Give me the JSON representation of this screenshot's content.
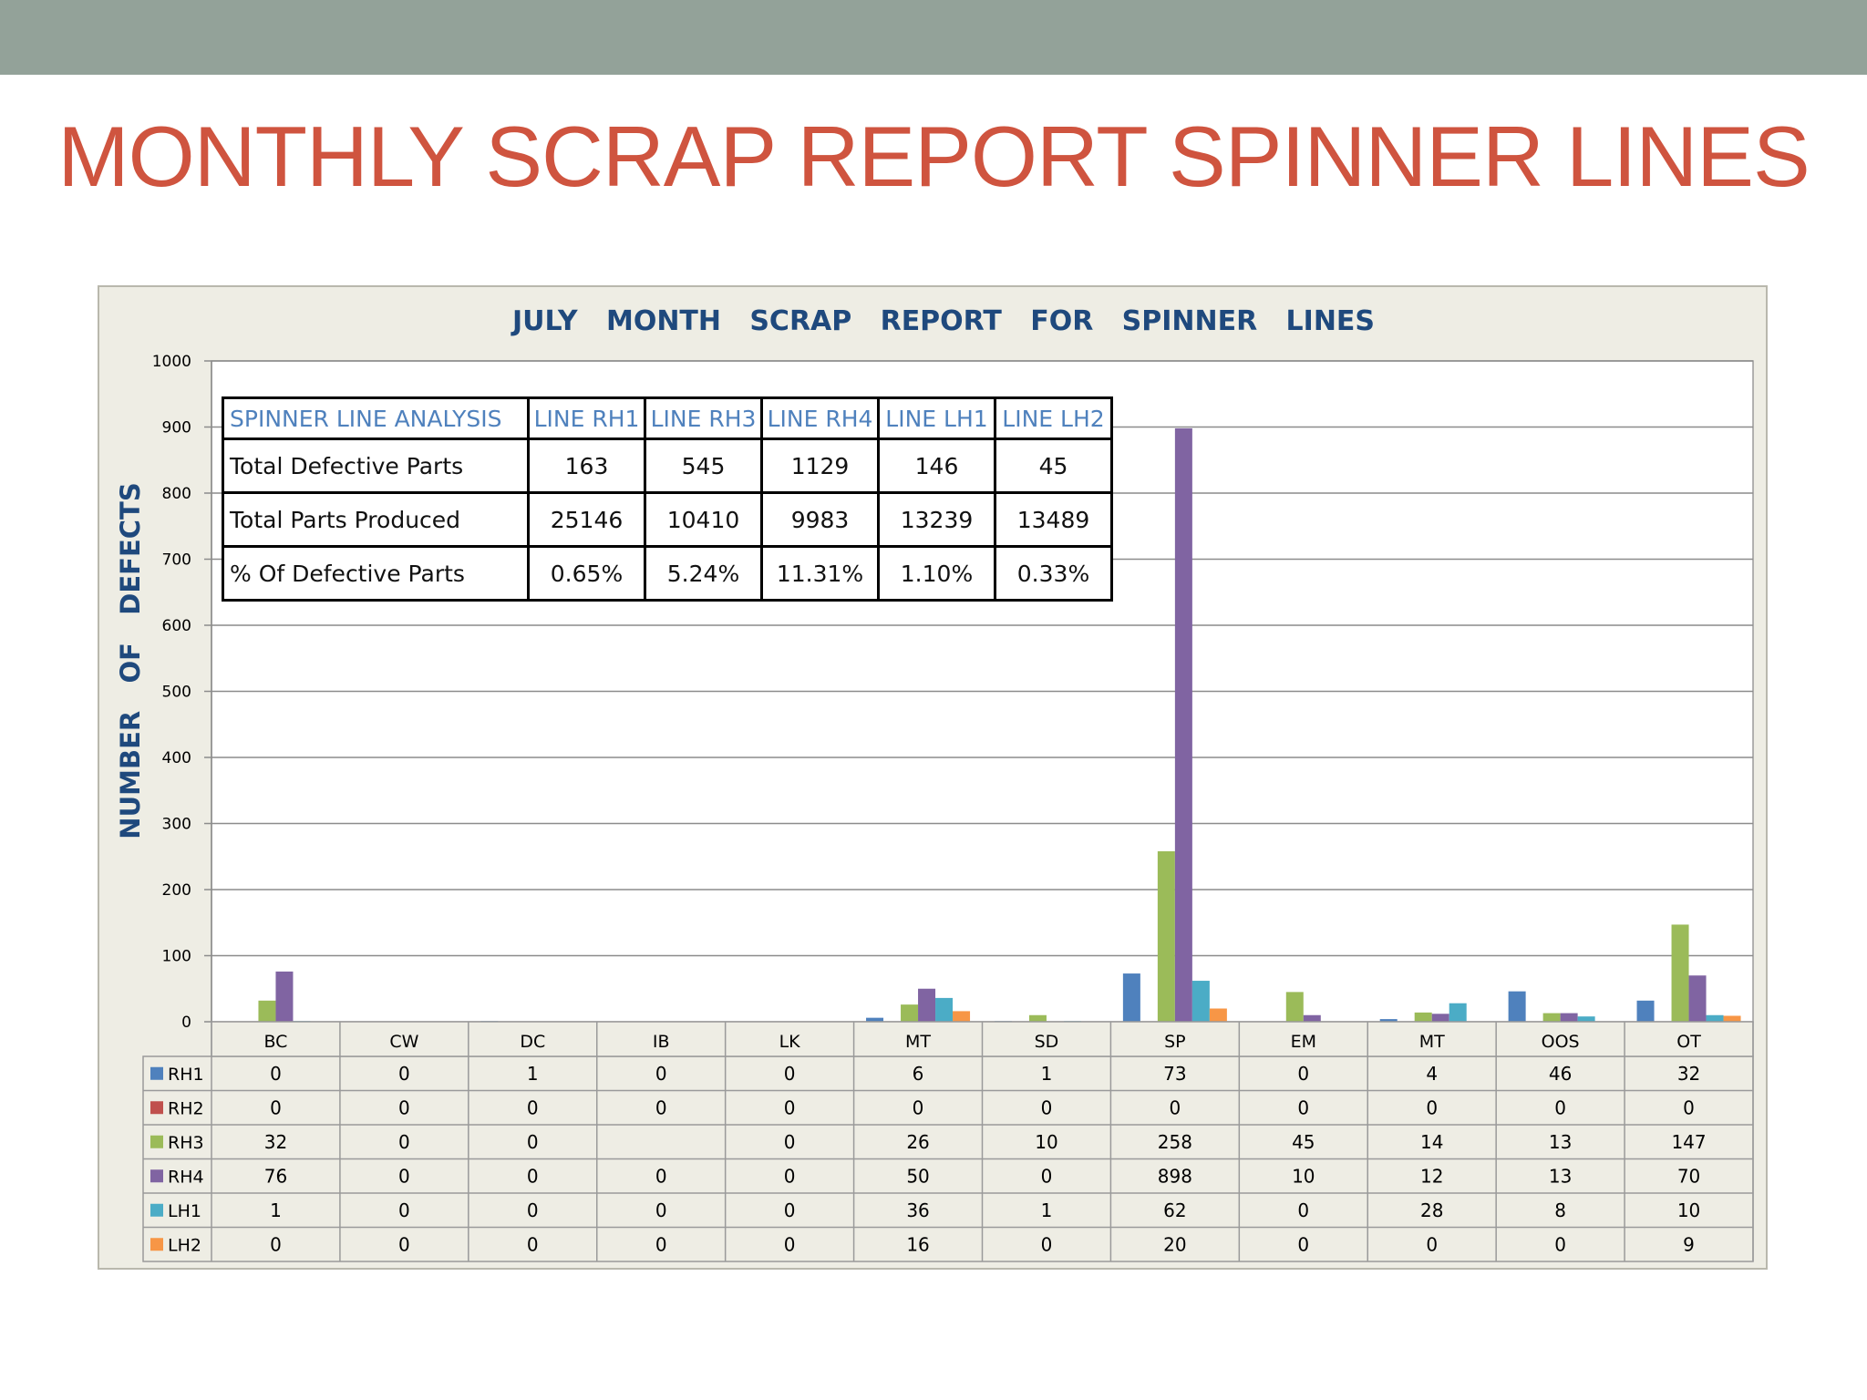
{
  "slide": {
    "title": "MONTHLY SCRAP REPORT SPINNER LINES"
  },
  "summary_table": {
    "header": [
      "SPINNER LINE ANALYSIS",
      "LINE RH1",
      "LINE RH3",
      "LINE RH4",
      "LINE LH1",
      "LINE LH2"
    ],
    "rows": [
      {
        "label": "Total Defective Parts",
        "values": [
          "163",
          "545",
          "1129",
          "146",
          "45"
        ]
      },
      {
        "label": "Total Parts Produced",
        "values": [
          "25146",
          "10410",
          "9983",
          "13239",
          "13489"
        ]
      },
      {
        "label": "% Of Defective Parts",
        "values": [
          "0.65%",
          "5.24%",
          "11.31%",
          "1.10%",
          "0.33%"
        ]
      }
    ]
  },
  "chart_data": {
    "type": "bar",
    "title": "JULY   MONTH   SCRAP   REPORT   FOR   SPINNER   LINES",
    "ylabel": "NUMBER   OF   DEFECTS",
    "xlabel": "",
    "ylim": [
      0,
      1000
    ],
    "yticks": [
      0,
      100,
      200,
      300,
      400,
      500,
      600,
      700,
      800,
      900,
      1000
    ],
    "grid": true,
    "legend": "data-table",
    "categories": [
      "BC",
      "CW",
      "DC",
      "IB",
      "LK",
      "MT",
      "SD",
      "SP",
      "EM",
      "MT",
      "OOS",
      "OT"
    ],
    "series": [
      {
        "name": "RH1",
        "color": "#4f81bd",
        "values": [
          0,
          0,
          1,
          0,
          0,
          6,
          1,
          73,
          0,
          4,
          46,
          32
        ],
        "labels": [
          "0",
          "0",
          "1",
          "0",
          "0",
          "6",
          "1",
          "73",
          "0",
          "4",
          "46",
          "32"
        ]
      },
      {
        "name": "RH2",
        "color": "#c0504d",
        "values": [
          0,
          0,
          0,
          0,
          0,
          0,
          0,
          0,
          0,
          0,
          0,
          0
        ],
        "labels": [
          "0",
          "0",
          "0",
          "0",
          "0",
          "0",
          "0",
          "0",
          "0",
          "0",
          "0",
          "0"
        ]
      },
      {
        "name": "RH3",
        "color": "#9bbb59",
        "values": [
          32,
          0,
          0,
          null,
          0,
          26,
          10,
          258,
          45,
          14,
          13,
          147
        ],
        "labels": [
          "32",
          "0",
          "0",
          "",
          "0",
          "26",
          "10",
          "258",
          "45",
          "14",
          "13",
          "147"
        ]
      },
      {
        "name": "RH4",
        "color": "#8064a2",
        "values": [
          76,
          0,
          0,
          0,
          0,
          50,
          0,
          898,
          10,
          12,
          13,
          70
        ],
        "labels": [
          "76",
          "0",
          "0",
          "0",
          "0",
          "50",
          "0",
          "898",
          "10",
          "12",
          "13",
          "70"
        ]
      },
      {
        "name": "LH1",
        "color": "#4bacc6",
        "values": [
          1,
          0,
          0,
          0,
          0,
          36,
          1,
          62,
          0,
          28,
          8,
          10
        ],
        "labels": [
          "1",
          "0",
          "0",
          "0",
          "0",
          "36",
          "1",
          "62",
          "0",
          "28",
          "8",
          "10"
        ]
      },
      {
        "name": "LH2",
        "color": "#f79646",
        "values": [
          0,
          0,
          0,
          0,
          0,
          16,
          0,
          20,
          0,
          0,
          0,
          9
        ],
        "labels": [
          "0",
          "0",
          "0",
          "0",
          "0",
          "16",
          "0",
          "20",
          "0",
          "0",
          "0",
          "9"
        ]
      }
    ]
  }
}
